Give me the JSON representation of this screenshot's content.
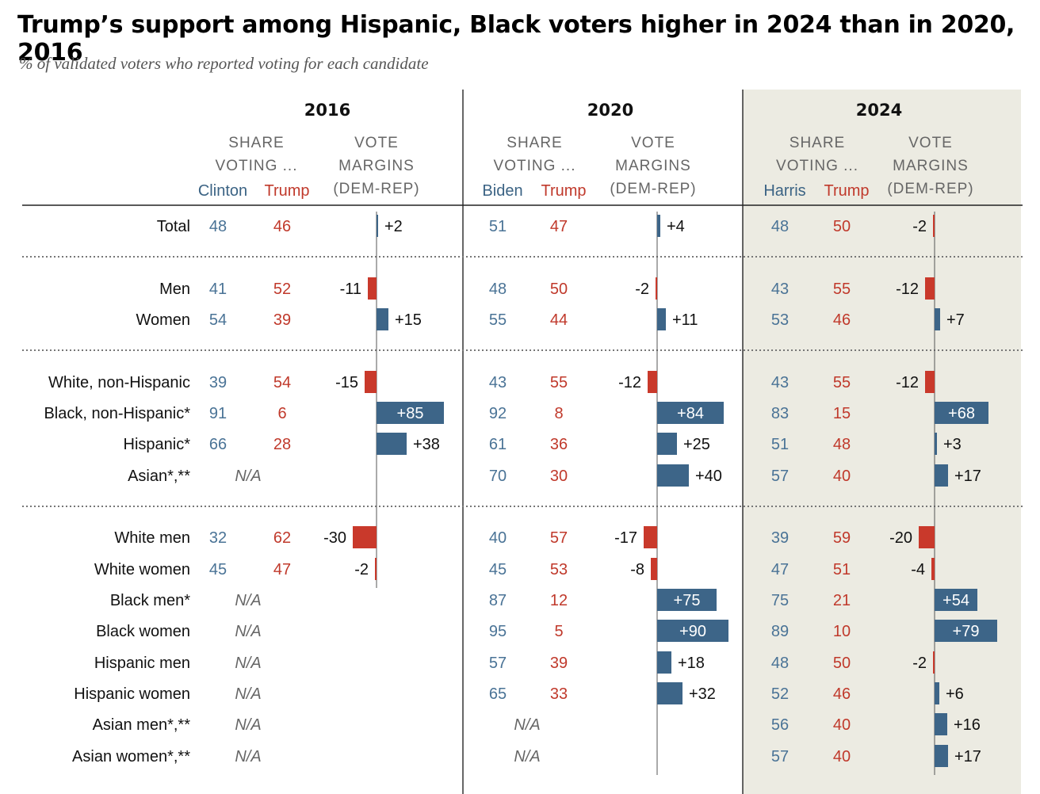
{
  "title": "Trump’s support among Hispanic, Black voters higher in 2024 than in 2020, 2016",
  "subtitle": "% of validated voters who reported voting for each candidate",
  "colors": {
    "dem": "#3d6588",
    "rep": "#c9392b",
    "highlight_bg": "#ecebe2"
  },
  "headers": {
    "share": [
      "SHARE",
      "VOTING ..."
    ],
    "margins": [
      "VOTE",
      "MARGINS",
      "(DEM-REP)"
    ]
  },
  "na_label": "N/A",
  "chart_data": {
    "type": "table",
    "title": "Trump’s support among Hispanic, Black voters higher in 2024 than in 2020, 2016",
    "years": [
      {
        "year": "2016",
        "dem_candidate": "Clinton",
        "rep_candidate": "Trump"
      },
      {
        "year": "2020",
        "dem_candidate": "Biden",
        "rep_candidate": "Trump"
      },
      {
        "year": "2024",
        "dem_candidate": "Harris",
        "rep_candidate": "Trump"
      }
    ],
    "groups": [
      {
        "label": "Total",
        "data": [
          {
            "d": 48,
            "r": 46,
            "m": "+2"
          },
          {
            "d": 51,
            "r": 47,
            "m": "+4"
          },
          {
            "d": 48,
            "r": 50,
            "m": "-2"
          }
        ]
      },
      {
        "label": "Men",
        "data": [
          {
            "d": 41,
            "r": 52,
            "m": "-11"
          },
          {
            "d": 48,
            "r": 50,
            "m": "-2"
          },
          {
            "d": 43,
            "r": 55,
            "m": "-12"
          }
        ]
      },
      {
        "label": "Women",
        "data": [
          {
            "d": 54,
            "r": 39,
            "m": "+15"
          },
          {
            "d": 55,
            "r": 44,
            "m": "+11"
          },
          {
            "d": 53,
            "r": 46,
            "m": "+7"
          }
        ]
      },
      {
        "label": "White, non-Hispanic",
        "data": [
          {
            "d": 39,
            "r": 54,
            "m": "-15"
          },
          {
            "d": 43,
            "r": 55,
            "m": "-12"
          },
          {
            "d": 43,
            "r": 55,
            "m": "-12"
          }
        ]
      },
      {
        "label": "Black, non-Hispanic*",
        "data": [
          {
            "d": 91,
            "r": 6,
            "m": "+85"
          },
          {
            "d": 92,
            "r": 8,
            "m": "+84"
          },
          {
            "d": 83,
            "r": 15,
            "m": "+68"
          }
        ]
      },
      {
        "label": "Hispanic*",
        "data": [
          {
            "d": 66,
            "r": 28,
            "m": "+38"
          },
          {
            "d": 61,
            "r": 36,
            "m": "+25"
          },
          {
            "d": 51,
            "r": 48,
            "m": "+3"
          }
        ]
      },
      {
        "label": "Asian*,**",
        "data": [
          null,
          {
            "d": 70,
            "r": 30,
            "m": "+40"
          },
          {
            "d": 57,
            "r": 40,
            "m": "+17"
          }
        ]
      },
      {
        "label": "White men",
        "data": [
          {
            "d": 32,
            "r": 62,
            "m": "-30"
          },
          {
            "d": 40,
            "r": 57,
            "m": "-17"
          },
          {
            "d": 39,
            "r": 59,
            "m": "-20"
          }
        ]
      },
      {
        "label": "White women",
        "data": [
          {
            "d": 45,
            "r": 47,
            "m": "-2"
          },
          {
            "d": 45,
            "r": 53,
            "m": "-8"
          },
          {
            "d": 47,
            "r": 51,
            "m": "-4"
          }
        ]
      },
      {
        "label": "Black men*",
        "data": [
          null,
          {
            "d": 87,
            "r": 12,
            "m": "+75"
          },
          {
            "d": 75,
            "r": 21,
            "m": "+54"
          }
        ]
      },
      {
        "label": "Black women",
        "data": [
          null,
          {
            "d": 95,
            "r": 5,
            "m": "+90"
          },
          {
            "d": 89,
            "r": 10,
            "m": "+79"
          }
        ]
      },
      {
        "label": "Hispanic men",
        "data": [
          null,
          {
            "d": 57,
            "r": 39,
            "m": "+18"
          },
          {
            "d": 48,
            "r": 50,
            "m": "-2"
          }
        ]
      },
      {
        "label": "Hispanic women",
        "data": [
          null,
          {
            "d": 65,
            "r": 33,
            "m": "+32"
          },
          {
            "d": 52,
            "r": 46,
            "m": "+6"
          }
        ]
      },
      {
        "label": "Asian men*,**",
        "data": [
          null,
          null,
          {
            "d": 56,
            "r": 40,
            "m": "+16"
          }
        ]
      },
      {
        "label": "Asian women*,**",
        "data": [
          null,
          null,
          {
            "d": 57,
            "r": 40,
            "m": "+17"
          }
        ]
      }
    ]
  }
}
